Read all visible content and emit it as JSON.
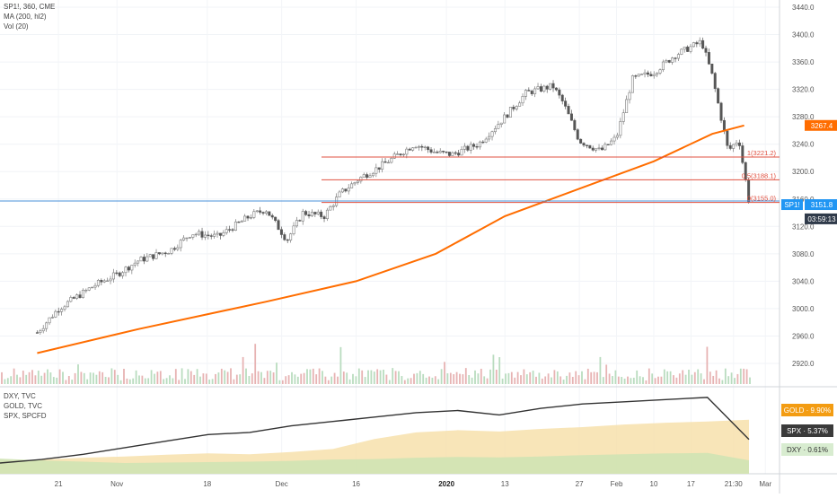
{
  "header": {
    "symbol_line": "SP1!, 360, CME",
    "ma_line": "MA (200, hl2)",
    "vol_line": "Vol (20)"
  },
  "lower_legend": {
    "lines": [
      "DXY, TVC",
      "GOLD, TVC",
      "SPX, SPCFD"
    ]
  },
  "colors": {
    "up": "#9cc7a4",
    "down": "#8a8a8a",
    "ma": "#ff6d00",
    "fib": "#e05040",
    "blue_line": "#4a90d9",
    "gold_area": "#f6dfa6",
    "dxy_area": "#cfe3b4",
    "spx_line": "#333333"
  },
  "chart_data": [
    {
      "type": "candlestick",
      "title": "SP1!, 360, CME",
      "y_axis": {
        "range": [
          2890,
          3450
        ],
        "ticks": [
          "3440.0",
          "3400.0",
          "3360.0",
          "3320.0",
          "3280.0",
          "3240.0",
          "3200.0",
          "3160.0",
          "3120.0",
          "3080.0",
          "3040.0",
          "3000.0",
          "2960.0",
          "2920.0"
        ]
      },
      "x_axis": {
        "ticks": [
          "21",
          "Nov",
          "18",
          "Dec",
          "16",
          "2020",
          "13",
          "27",
          "Feb",
          "10",
          "17",
          "21:30",
          "Mar"
        ]
      },
      "ohlc_close_path": [
        [
          "2019-10-17",
          2965
        ],
        [
          "2019-10-21",
          3000
        ],
        [
          "2019-10-28",
          3035
        ],
        [
          "2019-11-01",
          3050
        ],
        [
          "2019-11-05",
          3070
        ],
        [
          "2019-11-11",
          3085
        ],
        [
          "2019-11-15",
          3110
        ],
        [
          "2019-11-20",
          3105
        ],
        [
          "2019-11-26",
          3135
        ],
        [
          "2019-11-29",
          3145
        ],
        [
          "2019-12-03",
          3100
        ],
        [
          "2019-12-06",
          3140
        ],
        [
          "2019-12-10",
          3135
        ],
        [
          "2019-12-13",
          3168
        ],
        [
          "2019-12-17",
          3192
        ],
        [
          "2019-12-20",
          3205
        ],
        [
          "2019-12-27",
          3240
        ],
        [
          "2019-12-31",
          3228
        ],
        [
          "2020-01-03",
          3225
        ],
        [
          "2020-01-08",
          3240
        ],
        [
          "2020-01-13",
          3280
        ],
        [
          "2020-01-17",
          3315
        ],
        [
          "2020-01-22",
          3325
        ],
        [
          "2020-01-24",
          3300
        ],
        [
          "2020-01-27",
          3245
        ],
        [
          "2020-01-31",
          3230
        ],
        [
          "2020-02-03",
          3250
        ],
        [
          "2020-02-06",
          3335
        ],
        [
          "2020-02-10",
          3345
        ],
        [
          "2020-02-14",
          3370
        ],
        [
          "2020-02-19",
          3390
        ],
        [
          "2020-02-21",
          3340
        ],
        [
          "2020-02-24",
          3230
        ],
        [
          "2020-02-26",
          3248
        ],
        [
          "2020-02-28",
          3152
        ]
      ],
      "moving_average_200": [
        [
          "2019-10-17",
          2935
        ],
        [
          "2019-11-05",
          2970
        ],
        [
          "2019-11-29",
          3010
        ],
        [
          "2019-12-16",
          3040
        ],
        [
          "2019-12-31",
          3080
        ],
        [
          "2020-01-13",
          3135
        ],
        [
          "2020-01-27",
          3175
        ],
        [
          "2020-02-10",
          3215
        ],
        [
          "2020-02-21",
          3255
        ],
        [
          "2020-02-27",
          3267.4
        ]
      ],
      "fibonacci": [
        {
          "level": "1(3221.2)",
          "value": 3221.2
        },
        {
          "level": "0.5(3188.1)",
          "value": 3188.1
        },
        {
          "level": "0(3155.0)",
          "value": 3155.0
        }
      ],
      "horizontal_line_value": 3157,
      "price_labels": [
        {
          "text": "3267.4",
          "value": 3267.4,
          "color": "#ff6d00"
        },
        {
          "text": "SP1!",
          "value": 3151.8,
          "color": "#2196f3"
        },
        {
          "text": "3151.8",
          "value": 3151.8,
          "color": "#2196f3"
        },
        {
          "text": "03:59:13",
          "value": 3131,
          "color": "#2196f3"
        }
      ],
      "volume_series_note": "Vol (20)"
    },
    {
      "type": "area",
      "series": [
        {
          "name": "GOLD",
          "label": "GOLD · 9.90%",
          "color": "#f39c12",
          "values": [
            0.5,
            0.8,
            1.2,
            1.5,
            1.9,
            2.2,
            2.0,
            2.5,
            3.2,
            5.5,
            7.0,
            7.5,
            7.2,
            7.8,
            8.2,
            8.8,
            9.2,
            9.5,
            9.9
          ]
        },
        {
          "name": "SPX",
          "label": "SPX · 5.37%",
          "color": "#333333",
          "values": [
            0.0,
            0.8,
            2.0,
            3.5,
            5.0,
            6.5,
            7.0,
            8.5,
            9.5,
            10.5,
            11.5,
            12.0,
            11.0,
            12.5,
            13.5,
            14.0,
            14.5,
            15.0,
            5.37
          ]
        },
        {
          "name": "DXY",
          "label": "DXY · 0.61%",
          "color": "#d3e8c8",
          "values": [
            1.0,
            0.6,
            0.3,
            0.0,
            0.1,
            0.2,
            0.3,
            0.5,
            0.8,
            0.9,
            1.2,
            1.4,
            1.3,
            1.5,
            1.8,
            2.0,
            2.2,
            2.3,
            0.61
          ]
        }
      ]
    }
  ]
}
